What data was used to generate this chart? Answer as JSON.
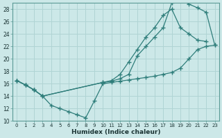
{
  "xlabel": "Humidex (Indice chaleur)",
  "background_color": "#cce8e8",
  "grid_color": "#b0d4d4",
  "line_color": "#2e7d7a",
  "ylim": [
    10,
    29
  ],
  "xlim": [
    -0.5,
    23.5
  ],
  "yticks": [
    10,
    12,
    14,
    16,
    18,
    20,
    22,
    24,
    26,
    28
  ],
  "xticks": [
    0,
    1,
    2,
    3,
    4,
    5,
    6,
    7,
    8,
    9,
    10,
    11,
    12,
    13,
    14,
    15,
    16,
    17,
    18,
    19,
    20,
    21,
    22,
    23
  ],
  "series1_x": [
    0,
    1,
    2,
    3,
    4,
    5,
    6,
    7,
    8,
    9,
    10,
    11,
    12,
    13,
    14,
    15,
    16,
    17,
    18,
    19,
    20,
    21,
    22,
    23
  ],
  "series1_y": [
    16.5,
    15.8,
    15.0,
    14.0,
    12.5,
    12.0,
    11.5,
    11.0,
    10.5,
    13.2,
    16.0,
    16.2,
    16.4,
    16.6,
    16.8,
    17.0,
    17.2,
    17.5,
    17.8,
    18.5,
    20.0,
    21.5,
    22.0,
    22.2
  ],
  "series2_x": [
    0,
    1,
    2,
    3,
    10,
    11,
    12,
    13,
    14,
    15,
    16,
    17,
    18,
    19,
    20,
    21,
    22
  ],
  "series2_y": [
    16.5,
    15.8,
    15.0,
    14.0,
    16.2,
    16.5,
    17.5,
    19.5,
    21.5,
    23.5,
    25.0,
    27.0,
    28.0,
    25.0,
    24.0,
    23.0,
    22.8
  ],
  "series3_x": [
    0,
    1,
    2,
    3,
    10,
    11,
    12,
    13,
    14,
    15,
    16,
    17,
    18,
    19,
    20,
    21,
    22,
    23
  ],
  "series3_y": [
    16.5,
    15.8,
    15.0,
    14.0,
    16.2,
    16.4,
    16.8,
    17.5,
    20.5,
    22.0,
    23.5,
    25.0,
    29.0,
    29.5,
    28.8,
    28.2,
    27.5,
    22.2
  ]
}
